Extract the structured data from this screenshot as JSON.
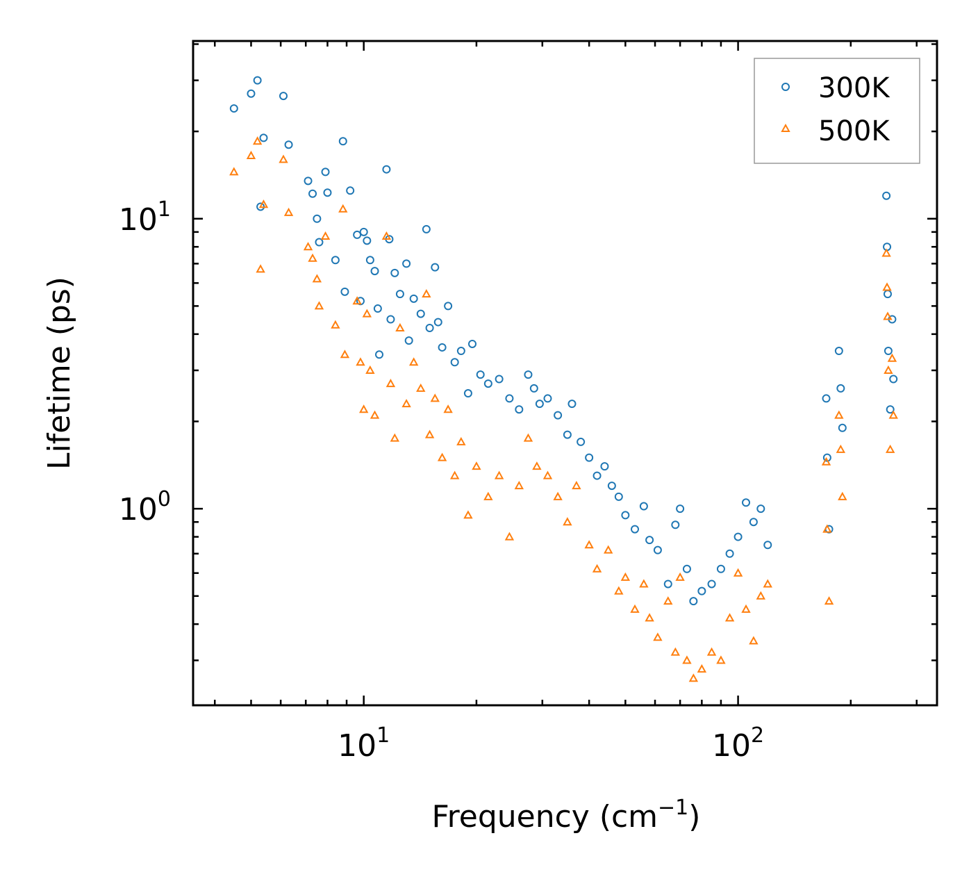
{
  "chart_data": {
    "type": "scatter",
    "title": "",
    "xlabel": "Frequency (cm",
    "xlabel_superscript": "−1",
    "xlabel_suffix": ")",
    "ylabel": "Lifetime (ps)",
    "xscale": "log",
    "yscale": "log",
    "xlim": [
      3.5,
      340
    ],
    "ylim": [
      0.21,
      41
    ],
    "x_tick_labels": [
      {
        "value": 10,
        "base": "10",
        "exp": "1"
      },
      {
        "value": 100,
        "base": "10",
        "exp": "2"
      }
    ],
    "y_tick_labels": [
      {
        "value": 1,
        "base": "10",
        "exp": "0"
      },
      {
        "value": 10,
        "base": "10",
        "exp": "1"
      }
    ],
    "grid": false,
    "legend": {
      "position": "top-right"
    },
    "series": [
      {
        "name": "300K",
        "marker": "circle",
        "color": "#1f77b4",
        "points": [
          [
            4.5,
            24
          ],
          [
            5.0,
            27
          ],
          [
            5.2,
            30
          ],
          [
            5.3,
            11
          ],
          [
            5.4,
            19
          ],
          [
            6.1,
            26.5
          ],
          [
            6.3,
            18
          ],
          [
            7.1,
            13.5
          ],
          [
            7.3,
            12.2
          ],
          [
            7.5,
            10
          ],
          [
            7.6,
            8.3
          ],
          [
            7.9,
            14.5
          ],
          [
            8.0,
            12.3
          ],
          [
            8.4,
            7.2
          ],
          [
            8.8,
            18.5
          ],
          [
            8.9,
            5.6
          ],
          [
            9.2,
            12.5
          ],
          [
            9.6,
            8.8
          ],
          [
            9.8,
            5.2
          ],
          [
            10.0,
            9.0
          ],
          [
            10.2,
            8.4
          ],
          [
            10.4,
            7.2
          ],
          [
            10.7,
            6.6
          ],
          [
            10.9,
            4.9
          ],
          [
            11.0,
            3.4
          ],
          [
            11.5,
            14.8
          ],
          [
            11.7,
            8.5
          ],
          [
            11.8,
            4.5
          ],
          [
            12.1,
            6.5
          ],
          [
            12.5,
            5.5
          ],
          [
            13.0,
            7.0
          ],
          [
            13.2,
            3.8
          ],
          [
            13.6,
            5.3
          ],
          [
            14.2,
            4.7
          ],
          [
            14.7,
            9.2
          ],
          [
            15.0,
            4.2
          ],
          [
            15.5,
            6.8
          ],
          [
            15.8,
            4.4
          ],
          [
            16.2,
            3.6
          ],
          [
            16.8,
            5.0
          ],
          [
            17.5,
            3.2
          ],
          [
            18.2,
            3.5
          ],
          [
            19.0,
            2.5
          ],
          [
            19.5,
            3.7
          ],
          [
            20.5,
            2.9
          ],
          [
            21.5,
            2.7
          ],
          [
            23.0,
            2.8
          ],
          [
            24.5,
            2.4
          ],
          [
            26.0,
            2.2
          ],
          [
            27.5,
            2.9
          ],
          [
            28.5,
            2.6
          ],
          [
            29.5,
            2.3
          ],
          [
            31.0,
            2.4
          ],
          [
            33.0,
            2.1
          ],
          [
            35.0,
            1.8
          ],
          [
            36.0,
            2.3
          ],
          [
            38.0,
            1.7
          ],
          [
            40.0,
            1.5
          ],
          [
            42.0,
            1.3
          ],
          [
            44.0,
            1.4
          ],
          [
            46.0,
            1.2
          ],
          [
            48.0,
            1.1
          ],
          [
            50.0,
            0.95
          ],
          [
            53.0,
            0.85
          ],
          [
            56.0,
            1.02
          ],
          [
            58.0,
            0.78
          ],
          [
            61.0,
            0.72
          ],
          [
            65.0,
            0.55
          ],
          [
            68.0,
            0.88
          ],
          [
            70.0,
            1.0
          ],
          [
            73.0,
            0.62
          ],
          [
            76.0,
            0.48
          ],
          [
            80.0,
            0.52
          ],
          [
            85.0,
            0.55
          ],
          [
            90.0,
            0.62
          ],
          [
            95.0,
            0.7
          ],
          [
            100.0,
            0.8
          ],
          [
            105.0,
            1.05
          ],
          [
            110.0,
            0.9
          ],
          [
            115.0,
            1.0
          ],
          [
            120.0,
            0.75
          ],
          [
            172.0,
            2.4
          ],
          [
            173.0,
            1.5
          ],
          [
            175.0,
            0.85
          ],
          [
            186.0,
            3.5
          ],
          [
            188.0,
            2.6
          ],
          [
            190.0,
            1.9
          ],
          [
            249.0,
            12.0
          ],
          [
            250.0,
            8.0
          ],
          [
            251.0,
            5.5
          ],
          [
            252.0,
            3.5
          ],
          [
            255.0,
            2.2
          ],
          [
            258.0,
            4.5
          ],
          [
            260.0,
            2.8
          ]
        ]
      },
      {
        "name": "500K",
        "marker": "triangle",
        "color": "#ff7f0e",
        "points": [
          [
            4.5,
            14.5
          ],
          [
            5.0,
            16.5
          ],
          [
            5.2,
            18.5
          ],
          [
            5.3,
            6.7
          ],
          [
            5.4,
            11.2
          ],
          [
            6.1,
            16
          ],
          [
            6.3,
            10.5
          ],
          [
            7.1,
            8.0
          ],
          [
            7.3,
            7.3
          ],
          [
            7.5,
            6.2
          ],
          [
            7.6,
            5.0
          ],
          [
            7.9,
            8.7
          ],
          [
            8.4,
            4.3
          ],
          [
            8.8,
            10.8
          ],
          [
            8.9,
            3.4
          ],
          [
            9.6,
            5.2
          ],
          [
            9.8,
            3.2
          ],
          [
            10.0,
            2.2
          ],
          [
            10.2,
            4.7
          ],
          [
            10.4,
            3.0
          ],
          [
            10.7,
            2.1
          ],
          [
            11.5,
            8.7
          ],
          [
            11.8,
            2.7
          ],
          [
            12.1,
            1.75
          ],
          [
            12.5,
            4.2
          ],
          [
            13.0,
            2.3
          ],
          [
            13.6,
            3.2
          ],
          [
            14.2,
            2.6
          ],
          [
            14.7,
            5.5
          ],
          [
            15.0,
            1.8
          ],
          [
            15.5,
            2.4
          ],
          [
            16.2,
            1.5
          ],
          [
            16.8,
            2.2
          ],
          [
            17.5,
            1.3
          ],
          [
            18.2,
            1.7
          ],
          [
            19.0,
            0.95
          ],
          [
            20.0,
            1.4
          ],
          [
            21.5,
            1.1
          ],
          [
            23.0,
            1.3
          ],
          [
            24.5,
            0.8
          ],
          [
            26.0,
            1.2
          ],
          [
            27.5,
            1.75
          ],
          [
            29.0,
            1.4
          ],
          [
            31.0,
            1.3
          ],
          [
            33.0,
            1.1
          ],
          [
            35.0,
            0.9
          ],
          [
            37.0,
            1.2
          ],
          [
            40.0,
            0.75
          ],
          [
            42.0,
            0.62
          ],
          [
            45.0,
            0.72
          ],
          [
            48.0,
            0.52
          ],
          [
            50.0,
            0.58
          ],
          [
            53.0,
            0.45
          ],
          [
            56.0,
            0.55
          ],
          [
            58.0,
            0.42
          ],
          [
            61.0,
            0.36
          ],
          [
            65.0,
            0.48
          ],
          [
            68.0,
            0.32
          ],
          [
            70.0,
            0.58
          ],
          [
            73.0,
            0.3
          ],
          [
            76.0,
            0.26
          ],
          [
            80.0,
            0.28
          ],
          [
            85.0,
            0.32
          ],
          [
            90.0,
            0.3
          ],
          [
            95.0,
            0.42
          ],
          [
            100.0,
            0.6
          ],
          [
            105.0,
            0.45
          ],
          [
            110.0,
            0.35
          ],
          [
            115.0,
            0.5
          ],
          [
            120.0,
            0.55
          ],
          [
            172.0,
            1.45
          ],
          [
            173.0,
            0.85
          ],
          [
            175.0,
            0.48
          ],
          [
            186.0,
            2.1
          ],
          [
            188.0,
            1.6
          ],
          [
            190.0,
            1.1
          ],
          [
            249.0,
            7.6
          ],
          [
            250.0,
            5.8
          ],
          [
            251.0,
            4.6
          ],
          [
            252.0,
            3.0
          ],
          [
            255.0,
            1.6
          ],
          [
            258.0,
            3.3
          ],
          [
            260.0,
            2.1
          ]
        ]
      }
    ]
  }
}
